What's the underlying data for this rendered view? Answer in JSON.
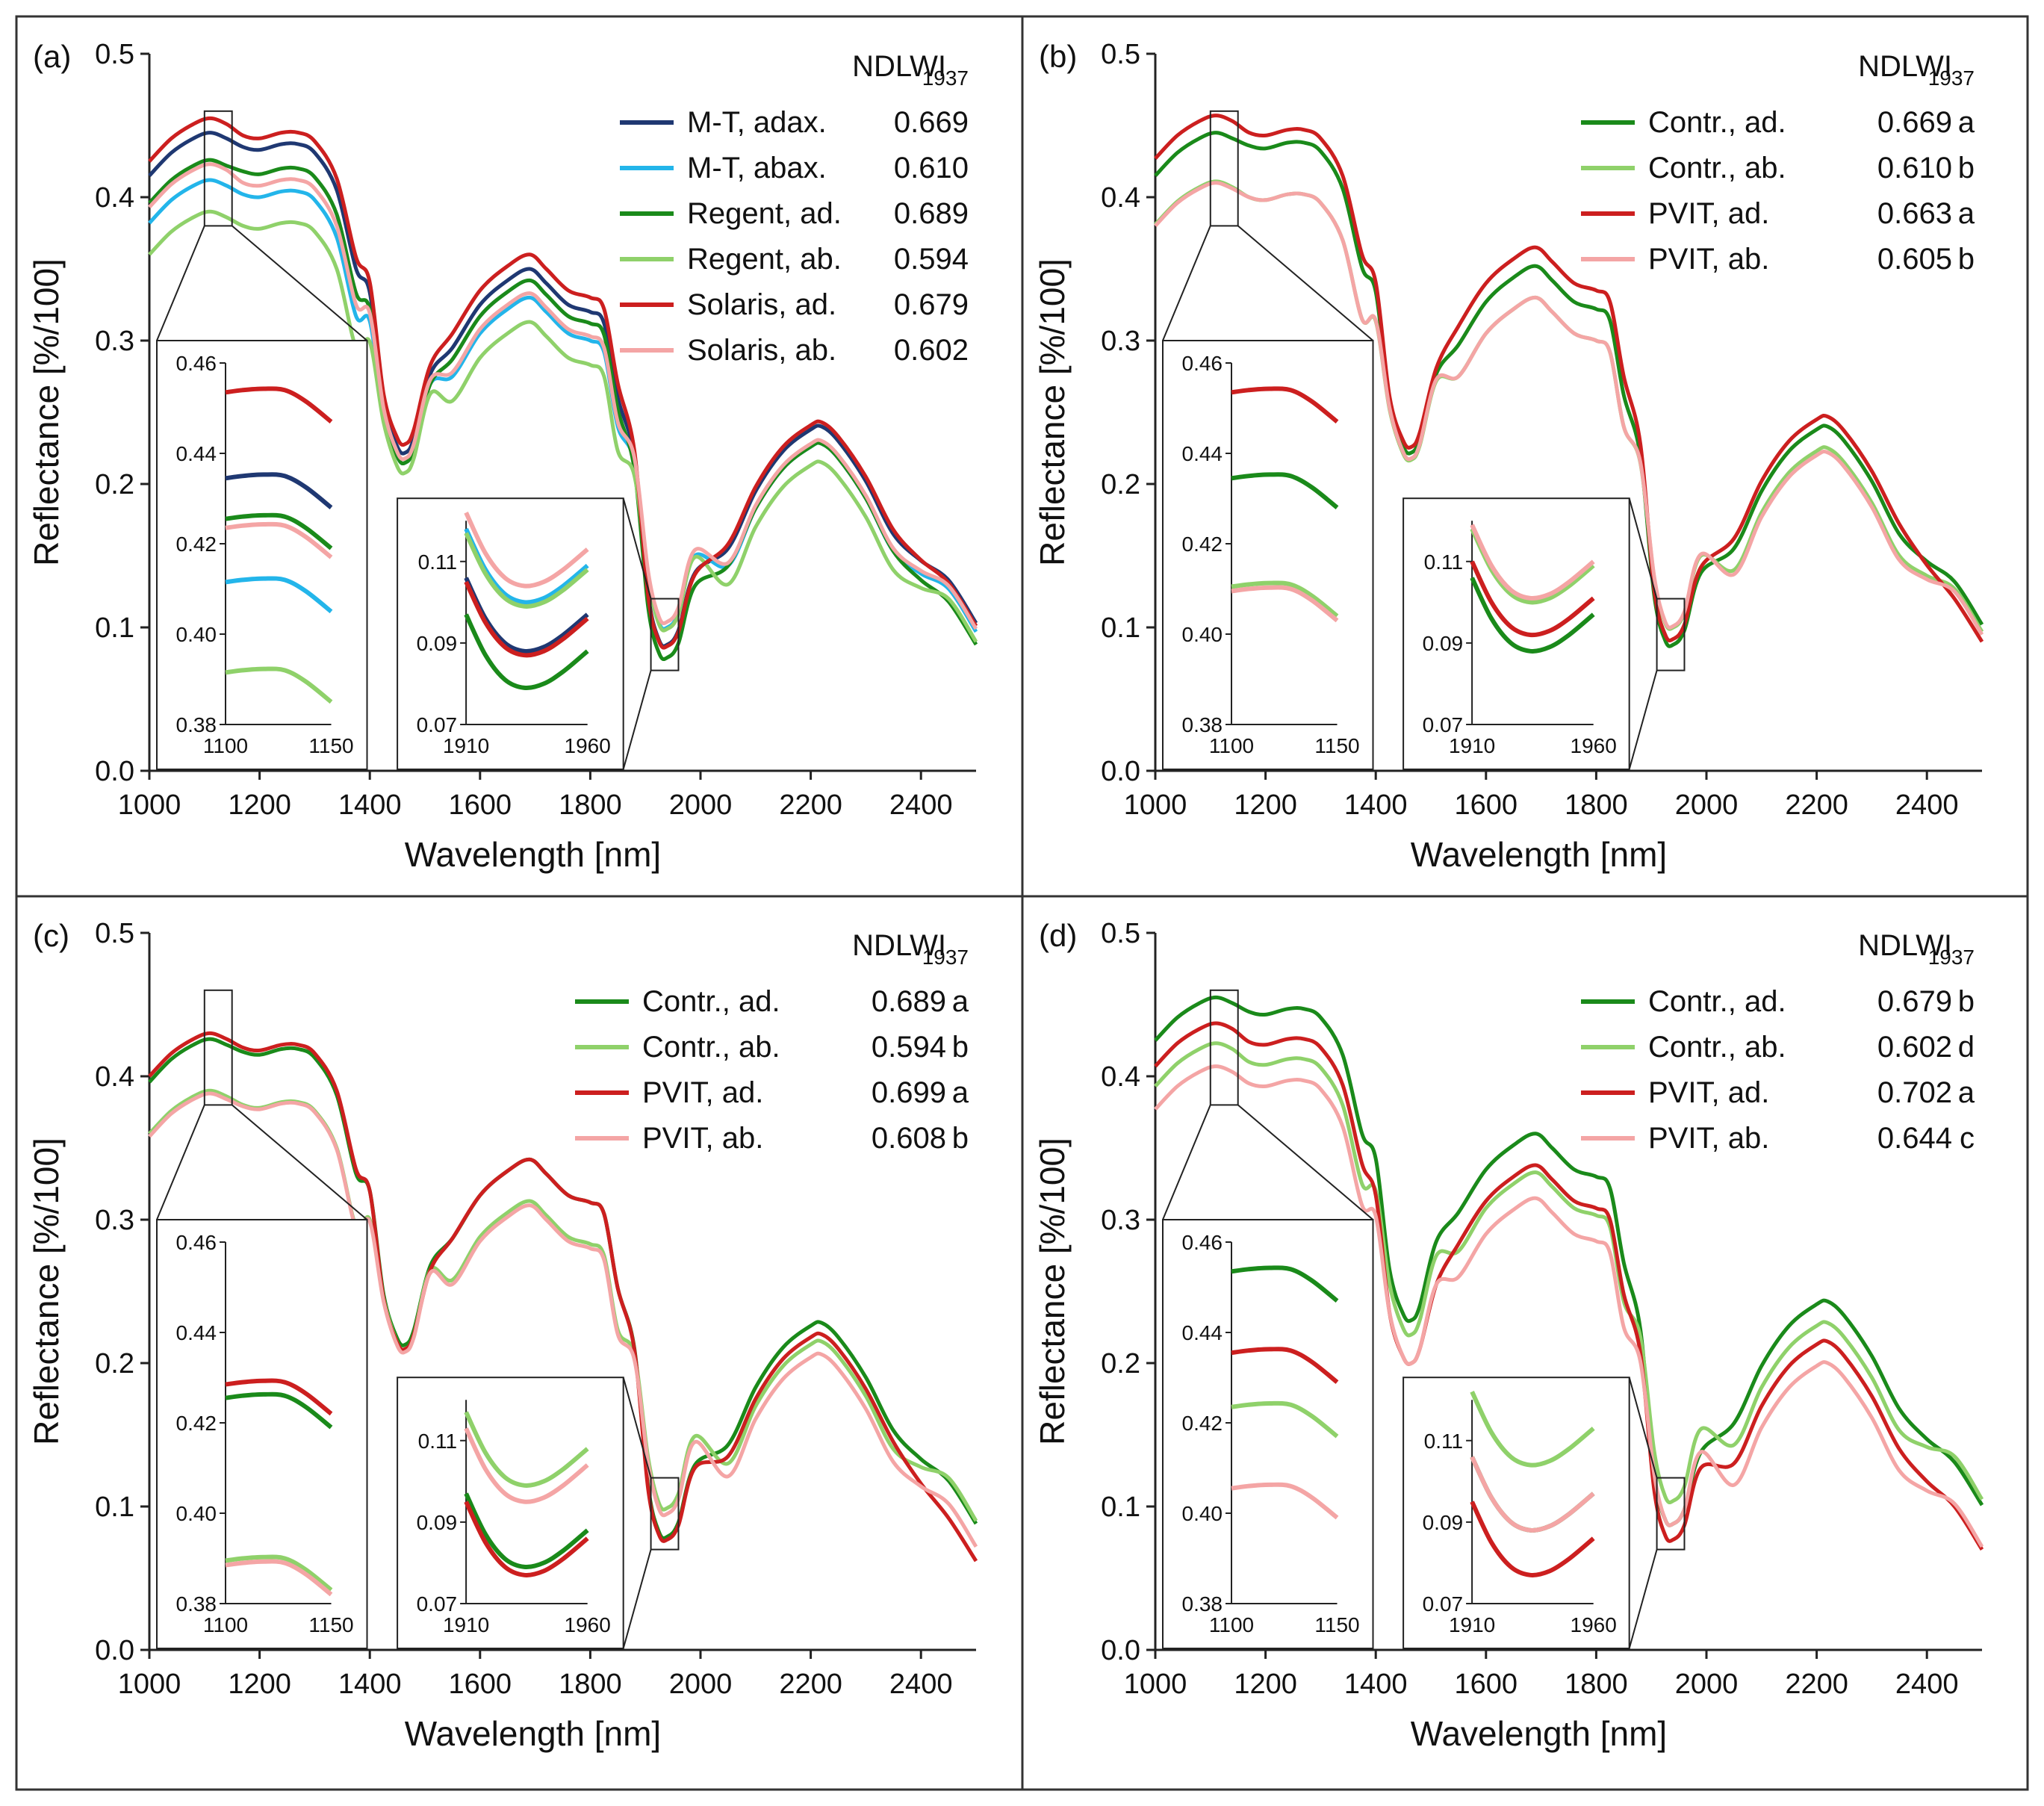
{
  "figure": {
    "colors": {
      "navy": "#1f3872",
      "skyblue": "#23b5ea",
      "darkgreen": "#1a8a1a",
      "lightgreen": "#8fd16a",
      "red": "#cc1f1f",
      "pink": "#f4a5a5",
      "frame": "#333333"
    }
  },
  "chart_data": [
    {
      "type": "line",
      "panel_label": "(a)",
      "xlabel": "Wavelength  [nm]",
      "ylabel": "Reflectance  [%/100]",
      "xlim": [
        1000,
        2500
      ],
      "ylim": [
        0,
        0.5
      ],
      "x_ticks": [
        "1000",
        "1200",
        "1400",
        "1600",
        "1800",
        "2000",
        "2200",
        "2400"
      ],
      "y_ticks": [
        "0.0",
        "0.1",
        "0.2",
        "0.3",
        "0.4",
        "0.5"
      ],
      "legend_title": "NDLWI",
      "legend_title_sub": "1937",
      "inset1": {
        "xlim": [
          1100,
          1150
        ],
        "ylim": [
          0.38,
          0.46
        ],
        "x_ticks": [
          "1100",
          "1150"
        ],
        "y_ticks": [
          "0.38",
          "0.40",
          "0.42",
          "0.44",
          "0.46"
        ]
      },
      "inset2": {
        "xlim": [
          1910,
          1960
        ],
        "ylim": [
          0.07,
          0.12
        ],
        "x_ticks": [
          "1910",
          "1960"
        ],
        "y_ticks": [
          "0.07",
          "0.09",
          "0.11"
        ]
      },
      "series": [
        {
          "name": "M-T, adax.",
          "value": "0.669",
          "letter": "",
          "color": "#1f3872",
          "peak1": 0.445,
          "plateau1": 0.435,
          "peak2": 0.35,
          "peak3": 0.24,
          "min1": 0.222,
          "min2": 0.088,
          "end": 0.103,
          "inset1_level": 0.435,
          "inset2_level": 0.088
        },
        {
          "name": "M-T, abax.",
          "value": "0.610",
          "letter": "",
          "color": "#23b5ea",
          "peak1": 0.412,
          "plateau1": 0.402,
          "peak2": 0.33,
          "peak3": 0.228,
          "min1": 0.215,
          "min2": 0.1,
          "end": 0.097,
          "inset1_level": 0.412,
          "inset2_level": 0.1
        },
        {
          "name": "Regent, ad.",
          "value": "0.689",
          "letter": "",
          "color": "#1a8a1a",
          "peak1": 0.426,
          "plateau1": 0.418,
          "peak2": 0.342,
          "peak3": 0.228,
          "min1": 0.215,
          "min2": 0.079,
          "end": 0.088,
          "inset1_level": 0.426,
          "inset2_level": 0.079
        },
        {
          "name": "Regent, ab.",
          "value": "0.594",
          "letter": "",
          "color": "#8fd16a",
          "peak1": 0.39,
          "plateau1": 0.38,
          "peak2": 0.313,
          "peak3": 0.215,
          "min1": 0.208,
          "min2": 0.099,
          "end": 0.09,
          "inset1_level": 0.392,
          "inset2_level": 0.099
        },
        {
          "name": "Solaris, ad.",
          "value": "0.679",
          "letter": "",
          "color": "#cc1f1f",
          "peak1": 0.455,
          "plateau1": 0.443,
          "peak2": 0.36,
          "peak3": 0.243,
          "min1": 0.228,
          "min2": 0.087,
          "end": 0.101,
          "inset1_level": 0.454,
          "inset2_level": 0.087
        },
        {
          "name": "Solaris, ab.",
          "value": "0.602",
          "letter": "",
          "color": "#f4a5a5",
          "peak1": 0.423,
          "plateau1": 0.41,
          "peak2": 0.333,
          "peak3": 0.23,
          "min1": 0.218,
          "min2": 0.104,
          "end": 0.099,
          "inset1_level": 0.424,
          "inset2_level": 0.104
        }
      ]
    },
    {
      "type": "line",
      "panel_label": "(b)",
      "xlabel": "Wavelength  [nm]",
      "ylabel": "Reflectance  [%/100]",
      "xlim": [
        1000,
        2500
      ],
      "ylim": [
        0,
        0.5
      ],
      "x_ticks": [
        "1000",
        "1200",
        "1400",
        "1600",
        "1800",
        "2000",
        "2200",
        "2400"
      ],
      "y_ticks": [
        "0.0",
        "0.1",
        "0.2",
        "0.3",
        "0.4",
        "0.5"
      ],
      "legend_title": "NDLWI",
      "legend_title_sub": "1937",
      "inset1": {
        "xlim": [
          1100,
          1150
        ],
        "ylim": [
          0.38,
          0.46
        ],
        "x_ticks": [
          "1100",
          "1150"
        ],
        "y_ticks": [
          "0.38",
          "0.40",
          "0.42",
          "0.44",
          "0.46"
        ]
      },
      "inset2": {
        "xlim": [
          1910,
          1960
        ],
        "ylim": [
          0.07,
          0.12
        ],
        "x_ticks": [
          "1910",
          "1960"
        ],
        "y_ticks": [
          "0.07",
          "0.09",
          "0.11"
        ]
      },
      "series": [
        {
          "name": "Contr., ad.",
          "value": "0.669",
          "letter": "a",
          "color": "#1a8a1a",
          "peak1": 0.445,
          "plateau1": 0.436,
          "peak2": 0.352,
          "peak3": 0.24,
          "min1": 0.222,
          "min2": 0.088,
          "end": 0.102,
          "inset1_level": 0.435,
          "inset2_level": 0.088
        },
        {
          "name": "Contr., ab.",
          "value": "0.610",
          "letter": "b",
          "color": "#8fd16a",
          "peak1": 0.411,
          "plateau1": 0.4,
          "peak2": 0.33,
          "peak3": 0.225,
          "min1": 0.217,
          "min2": 0.1,
          "end": 0.097,
          "inset1_level": 0.411,
          "inset2_level": 0.1
        },
        {
          "name": "PVIT, ad.",
          "value": "0.663",
          "letter": "a",
          "color": "#cc1f1f",
          "peak1": 0.457,
          "plateau1": 0.445,
          "peak2": 0.365,
          "peak3": 0.247,
          "min1": 0.226,
          "min2": 0.092,
          "end": 0.09,
          "inset1_level": 0.454,
          "inset2_level": 0.092
        },
        {
          "name": "PVIT, ab.",
          "value": "0.605",
          "letter": "b",
          "color": "#f4a5a5",
          "peak1": 0.41,
          "plateau1": 0.4,
          "peak2": 0.33,
          "peak3": 0.222,
          "min1": 0.218,
          "min2": 0.101,
          "end": 0.095,
          "inset1_level": 0.41,
          "inset2_level": 0.101
        }
      ]
    },
    {
      "type": "line",
      "panel_label": "(c)",
      "xlabel": "Wavelength  [nm]",
      "ylabel": "Reflectance  [%/100]",
      "xlim": [
        1000,
        2500
      ],
      "ylim": [
        0,
        0.5
      ],
      "x_ticks": [
        "1000",
        "1200",
        "1400",
        "1600",
        "1800",
        "2000",
        "2200",
        "2400"
      ],
      "y_ticks": [
        "0.0",
        "0.1",
        "0.2",
        "0.3",
        "0.4",
        "0.5"
      ],
      "legend_title": "NDLWI",
      "legend_title_sub": "1937",
      "inset1": {
        "xlim": [
          1100,
          1150
        ],
        "ylim": [
          0.38,
          0.46
        ],
        "x_ticks": [
          "1100",
          "1150"
        ],
        "y_ticks": [
          "0.38",
          "0.40",
          "0.42",
          "0.44",
          "0.46"
        ]
      },
      "inset2": {
        "xlim": [
          1910,
          1960
        ],
        "ylim": [
          0.07,
          0.12
        ],
        "x_ticks": [
          "1910",
          "1960"
        ],
        "y_ticks": [
          "0.07",
          "0.09",
          "0.11"
        ]
      },
      "series": [
        {
          "name": "Contr., ad.",
          "value": "0.689",
          "letter": "a",
          "color": "#1a8a1a",
          "peak1": 0.426,
          "plateau1": 0.417,
          "peak2": 0.342,
          "peak3": 0.228,
          "min1": 0.213,
          "min2": 0.079,
          "end": 0.088,
          "inset1_level": 0.426,
          "inset2_level": 0.079
        },
        {
          "name": "Contr., ab.",
          "value": "0.594",
          "letter": "b",
          "color": "#8fd16a",
          "peak1": 0.39,
          "plateau1": 0.38,
          "peak2": 0.313,
          "peak3": 0.215,
          "min1": 0.21,
          "min2": 0.099,
          "end": 0.09,
          "inset1_level": 0.39,
          "inset2_level": 0.099
        },
        {
          "name": "PVIT, ad.",
          "value": "0.699",
          "letter": "a",
          "color": "#cc1f1f",
          "peak1": 0.43,
          "plateau1": 0.42,
          "peak2": 0.342,
          "peak3": 0.22,
          "min1": 0.21,
          "min2": 0.077,
          "end": 0.062,
          "inset1_level": 0.429,
          "inset2_level": 0.077
        },
        {
          "name": "PVIT, ab.",
          "value": "0.608",
          "letter": "b",
          "color": "#f4a5a5",
          "peak1": 0.388,
          "plateau1": 0.379,
          "peak2": 0.31,
          "peak3": 0.206,
          "min1": 0.208,
          "min2": 0.095,
          "end": 0.072,
          "inset1_level": 0.389,
          "inset2_level": 0.095
        }
      ]
    },
    {
      "type": "line",
      "panel_label": "(d)",
      "xlabel": "Wavelength  [nm]",
      "ylabel": "Reflectance  [%/100]",
      "xlim": [
        1000,
        2500
      ],
      "ylim": [
        0,
        0.5
      ],
      "x_ticks": [
        "1000",
        "1200",
        "1400",
        "1600",
        "1800",
        "2000",
        "2200",
        "2400"
      ],
      "y_ticks": [
        "0.0",
        "0.1",
        "0.2",
        "0.3",
        "0.4",
        "0.5"
      ],
      "legend_title": "NDLWI",
      "legend_title_sub": "1937",
      "inset1": {
        "xlim": [
          1100,
          1150
        ],
        "ylim": [
          0.38,
          0.46
        ],
        "x_ticks": [
          "1100",
          "1150"
        ],
        "y_ticks": [
          "0.38",
          "0.40",
          "0.42",
          "0.44",
          "0.46"
        ]
      },
      "inset2": {
        "xlim": [
          1910,
          1960
        ],
        "ylim": [
          0.07,
          0.12
        ],
        "x_ticks": [
          "1910",
          "1960"
        ],
        "y_ticks": [
          "0.07",
          "0.09",
          "0.11"
        ]
      },
      "series": [
        {
          "name": "Contr., ad.",
          "value": "0.679",
          "letter": "b",
          "color": "#1a8a1a",
          "peak1": 0.455,
          "plateau1": 0.445,
          "peak2": 0.36,
          "peak3": 0.243,
          "min1": 0.23,
          "min2": 0.088,
          "end": 0.101,
          "inset1_level": 0.454,
          "inset2_level": 0.088
        },
        {
          "name": "Contr., ab.",
          "value": "0.602",
          "letter": "d",
          "color": "#8fd16a",
          "peak1": 0.423,
          "plateau1": 0.41,
          "peak2": 0.333,
          "peak3": 0.228,
          "min1": 0.22,
          "min2": 0.104,
          "end": 0.105,
          "inset1_level": 0.424,
          "inset2_level": 0.104
        },
        {
          "name": "PVIT, ad.",
          "value": "0.702",
          "letter": "a",
          "color": "#cc1f1f",
          "peak1": 0.437,
          "plateau1": 0.424,
          "peak2": 0.338,
          "peak3": 0.215,
          "min1": 0.2,
          "min2": 0.077,
          "end": 0.07,
          "inset1_level": 0.436,
          "inset2_level": 0.077
        },
        {
          "name": "PVIT, ab.",
          "value": "0.644",
          "letter": "c",
          "color": "#f4a5a5",
          "peak1": 0.407,
          "plateau1": 0.395,
          "peak2": 0.315,
          "peak3": 0.2,
          "min1": 0.2,
          "min2": 0.088,
          "end": 0.072,
          "inset1_level": 0.406,
          "inset2_level": 0.088
        }
      ]
    }
  ]
}
